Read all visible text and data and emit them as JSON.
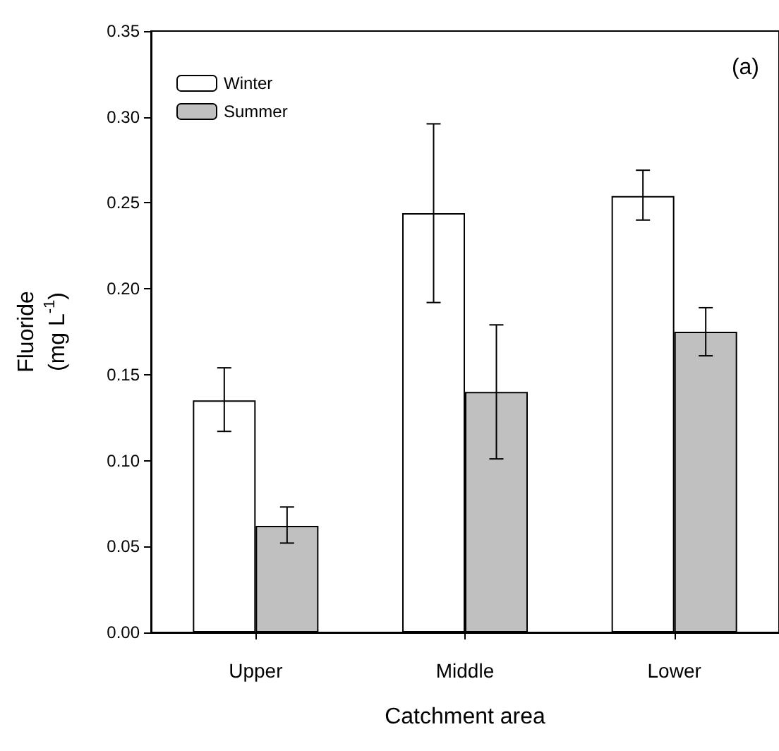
{
  "chart_data": {
    "type": "bar",
    "xlabel": "Catchment area",
    "ylabel": "Fluoride\n(mg L$^{-1}$)",
    "annotations": [
      "(a)"
    ],
    "categories": [
      "Upper",
      "Middle",
      "Lower"
    ],
    "series": [
      {
        "name": "Winter",
        "color": "#ffffff",
        "values": [
          0.135,
          0.244,
          0.254
        ],
        "errors": [
          [
            0.117,
            0.154
          ],
          [
            0.192,
            0.296
          ],
          [
            0.24,
            0.269
          ]
        ]
      },
      {
        "name": "Summer",
        "color": "#c0c0c0",
        "values": [
          0.062,
          0.14,
          0.175
        ],
        "errors": [
          [
            0.052,
            0.073
          ],
          [
            0.101,
            0.179
          ],
          [
            0.161,
            0.189
          ]
        ]
      }
    ],
    "ylim": [
      0,
      0.35
    ],
    "yticks": [
      {
        "value": 0,
        "label": "0.00"
      },
      0.05,
      {
        "value": 0.1,
        "label": "0.10"
      },
      0.15,
      {
        "value": 0.2,
        "label": "0.20"
      },
      0.25,
      {
        "value": 0.3,
        "label": "0.30"
      },
      0.35
    ],
    "grid": false,
    "legend": "top left"
  }
}
